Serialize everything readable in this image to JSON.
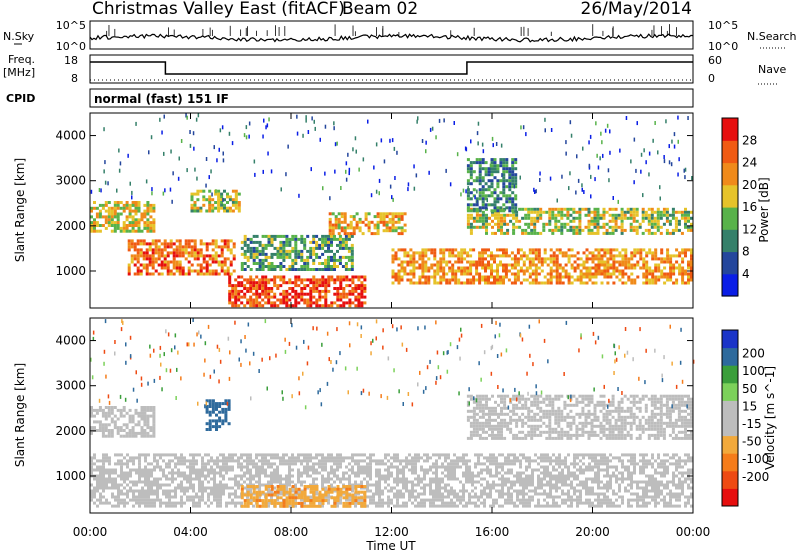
{
  "header": {
    "radar": "Christmas Valley East (fitACF)",
    "beam": "Beam 02",
    "date": "26/May/2014"
  },
  "noise_panel": {
    "left_label": "N.Sky",
    "left_tick_top": "10^5",
    "left_tick_bottom": "10^0",
    "right_label": "N.Search",
    "right_tick_top": "10^5",
    "right_tick_bottom": "10^0"
  },
  "freq_panel": {
    "left_label_1": "Freq.",
    "left_label_2": "[MHz]",
    "left_tick_top": "18",
    "left_tick_bottom": "8",
    "right_label": "Nave",
    "right_tick_top": "60",
    "right_tick_bottom": "0",
    "frequency_steps": [
      {
        "from": "00:00",
        "to": "03:00",
        "level": "high"
      },
      {
        "from": "03:00",
        "to": "15:00",
        "level": "low"
      },
      {
        "from": "15:00",
        "to": "24:00",
        "level": "high"
      }
    ]
  },
  "cpid": {
    "label": "CPID",
    "mode": "normal (fast) 151 IF"
  },
  "colors": {
    "power": [
      "#0a1ee6",
      "#24469c",
      "#35806a",
      "#58b24a",
      "#e6c32a",
      "#f08a1a",
      "#f05a12",
      "#e60e0e"
    ],
    "velocity": [
      "#1a34c8",
      "#2e6a9c",
      "#3a9e3a",
      "#7cd15a",
      "#bdbdbd",
      "#bdbdbd",
      "#f2a93b",
      "#f57c1a",
      "#ee4a12",
      "#e60e0e"
    ]
  },
  "chart_data": [
    {
      "type": "heatmap",
      "title": "Power",
      "xlabel": "",
      "ylabel": "Slant Range [km]",
      "x_ticks": [
        "00:00",
        "04:00",
        "08:00",
        "12:00",
        "16:00",
        "20:00",
        "00:00"
      ],
      "y_ticks": [
        "1000",
        "2000",
        "3000",
        "4000"
      ],
      "ylim": [
        180,
        4500
      ],
      "colorbar": {
        "label": "Power [dB]",
        "ticks": [
          "4",
          "8",
          "12",
          "16",
          "20",
          "24",
          "28"
        ],
        "range": [
          0,
          32
        ]
      },
      "echo_regions": [
        {
          "start_h": 0.0,
          "end_h": 2.6,
          "range_km": [
            1850,
            2550
          ],
          "mean_db": 18
        },
        {
          "start_h": 1.5,
          "end_h": 5.8,
          "range_km": [
            900,
            1700
          ],
          "mean_db": 24
        },
        {
          "start_h": 5.5,
          "end_h": 11.0,
          "range_km": [
            200,
            900
          ],
          "mean_db": 27
        },
        {
          "start_h": 4.0,
          "end_h": 6.0,
          "range_km": [
            2300,
            2800
          ],
          "mean_db": 16
        },
        {
          "start_h": 6.0,
          "end_h": 10.5,
          "range_km": [
            1000,
            1800
          ],
          "mean_db": 12
        },
        {
          "start_h": 9.5,
          "end_h": 12.6,
          "range_km": [
            1800,
            2300
          ],
          "mean_db": 20
        },
        {
          "start_h": 12.0,
          "end_h": 24.0,
          "range_km": [
            700,
            1500
          ],
          "mean_db": 22
        },
        {
          "start_h": 15.0,
          "end_h": 24.0,
          "range_km": [
            1800,
            2400
          ],
          "mean_db": 16
        },
        {
          "start_h": 15.0,
          "end_h": 17.0,
          "range_km": [
            2300,
            3500
          ],
          "mean_db": 10
        }
      ]
    },
    {
      "type": "heatmap",
      "title": "Velocity",
      "xlabel": "Time UT",
      "ylabel": "Slant Range [km]",
      "x_ticks": [
        "00:00",
        "04:00",
        "08:00",
        "12:00",
        "16:00",
        "20:00",
        "00:00"
      ],
      "y_ticks": [
        "1000",
        "2000",
        "3000",
        "4000"
      ],
      "ylim": [
        180,
        4500
      ],
      "colorbar": {
        "label": "Velocity [m s^-1]",
        "ticks": [
          "200",
          "100",
          "50",
          "15",
          "-15",
          "-50",
          "-100",
          "-200"
        ],
        "range": [
          -250,
          250
        ]
      },
      "echo_regions": [
        {
          "start_h": 0.0,
          "end_h": 24.0,
          "range_km": [
            300,
            1500
          ],
          "mean_velocity": 0
        },
        {
          "start_h": 0.0,
          "end_h": 2.6,
          "range_km": [
            1850,
            2550
          ],
          "mean_velocity": 0
        },
        {
          "start_h": 15.0,
          "end_h": 24.0,
          "range_km": [
            1800,
            2800
          ],
          "mean_velocity": 0
        },
        {
          "start_h": 4.6,
          "end_h": 5.6,
          "range_km": [
            2000,
            2700
          ],
          "mean_velocity": 180
        },
        {
          "start_h": 6.0,
          "end_h": 11.0,
          "range_km": [
            300,
            800
          ],
          "mean_velocity": -40
        }
      ]
    }
  ]
}
